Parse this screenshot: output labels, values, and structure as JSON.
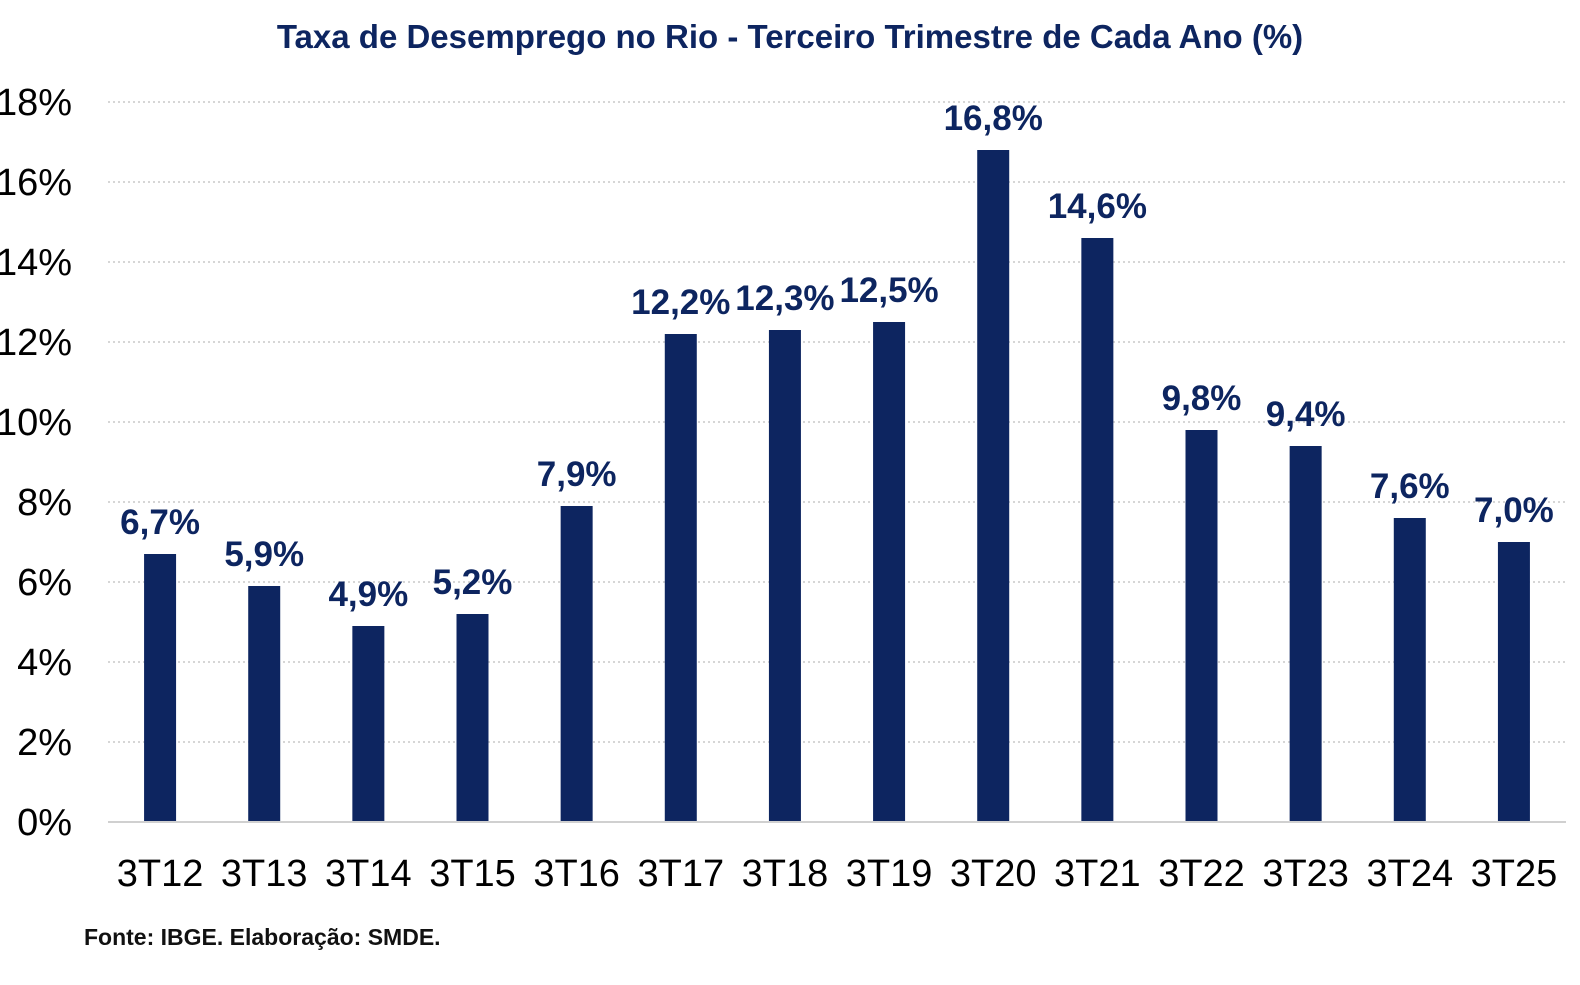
{
  "chart_data": {
    "type": "bar",
    "title": "Taxa de Desemprego no Rio - Terceiro Trimestre de Cada Ano (%)",
    "xlabel": "",
    "ylabel": "",
    "categories": [
      "3T12",
      "3T13",
      "3T14",
      "3T15",
      "3T16",
      "3T17",
      "3T18",
      "3T19",
      "3T20",
      "3T21",
      "3T22",
      "3T23",
      "3T24",
      "3T25"
    ],
    "values": [
      6.7,
      5.9,
      4.9,
      5.2,
      7.9,
      12.2,
      12.3,
      12.5,
      16.8,
      14.6,
      9.8,
      9.4,
      7.6,
      7.0
    ],
    "data_labels": [
      "6,7%",
      "5,9%",
      "4,9%",
      "5,2%",
      "7,9%",
      "12,2%",
      "12,3%",
      "12,5%",
      "16,8%",
      "14,6%",
      "9,8%",
      "9,4%",
      "7,6%",
      "7,0%"
    ],
    "ylim": [
      0,
      18
    ],
    "yticks": [
      0,
      2,
      4,
      6,
      8,
      10,
      12,
      14,
      16,
      18
    ],
    "ytick_labels": [
      "0%",
      "2%",
      "4%",
      "6%",
      "8%",
      "10%",
      "12%",
      "14%",
      "16%",
      "18%"
    ],
    "grid": true,
    "legend": "none",
    "bar_color": "#0d2560",
    "label_color": "#0d2560",
    "source": "Fonte: IBGE. Elaboração: SMDE."
  }
}
